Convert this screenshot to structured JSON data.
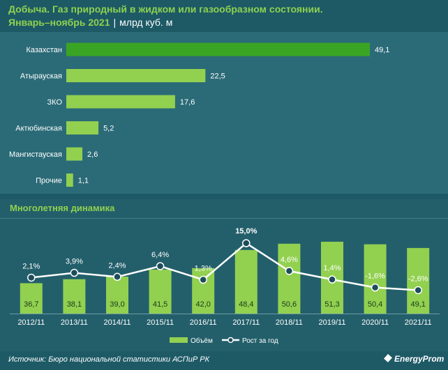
{
  "header": {
    "title_line1": "Добыча. Газ природный в жидком или газообразном состоянии.",
    "period": "Январь–ноябрь 2021",
    "separator": "|",
    "unit": "млрд куб. м"
  },
  "section2_title": "Многолетняя динамика",
  "footer": {
    "source": "Источник: Бюро национальной статистики АСПиР РК",
    "logo": "EnergyProm"
  },
  "colors": {
    "background": "#1d5a66",
    "bar_green": "#92d050",
    "bar_dark_green": "#3aa524",
    "line_white": "#ffffff",
    "marker_fill": "#1d4d5a"
  },
  "chart_data": [
    {
      "type": "bar",
      "orientation": "horizontal",
      "title": "Добыча. Газ природный в жидком или газообразном состоянии. Январь–ноябрь 2021",
      "unit": "млрд куб. м",
      "categories": [
        "Казахстан",
        "Атырауская",
        "ЗКО",
        "Актюбинская",
        "Мангистауская",
        "Прочие"
      ],
      "values": [
        49.1,
        22.5,
        17.6,
        5.2,
        2.6,
        1.1
      ],
      "value_labels": [
        "49,1",
        "22,5",
        "17,6",
        "5,2",
        "2,6",
        "1,1"
      ],
      "xlim": [
        0,
        49.1
      ]
    },
    {
      "type": "bar+line",
      "title": "Многолетняя динамика",
      "categories": [
        "2012/11",
        "2013/11",
        "2014/11",
        "2015/11",
        "2016/11",
        "2017/11",
        "2018/11",
        "2019/11",
        "2020/11",
        "2021/11"
      ],
      "series": [
        {
          "name": "Объём",
          "type": "bar",
          "values": [
            36.7,
            38.1,
            39.0,
            41.5,
            42.0,
            48.4,
            50.6,
            51.3,
            50.4,
            49.1
          ],
          "labels": [
            "36,7",
            "38,1",
            "39,0",
            "41,5",
            "42,0",
            "48,4",
            "50,6",
            "51,3",
            "50,4",
            "49,1"
          ]
        },
        {
          "name": "Рост за год",
          "type": "line",
          "values": [
            2.1,
            3.9,
            2.4,
            6.4,
            1.3,
            15.0,
            4.6,
            1.4,
            -1.6,
            -2.6
          ],
          "labels": [
            "2,1%",
            "3,9%",
            "2,4%",
            "6,4%",
            "1,3%",
            "15,0%",
            "4,6%",
            "1,4%",
            "-1,6%",
            "-2,6%"
          ]
        }
      ],
      "legend": "bottom-center"
    }
  ]
}
